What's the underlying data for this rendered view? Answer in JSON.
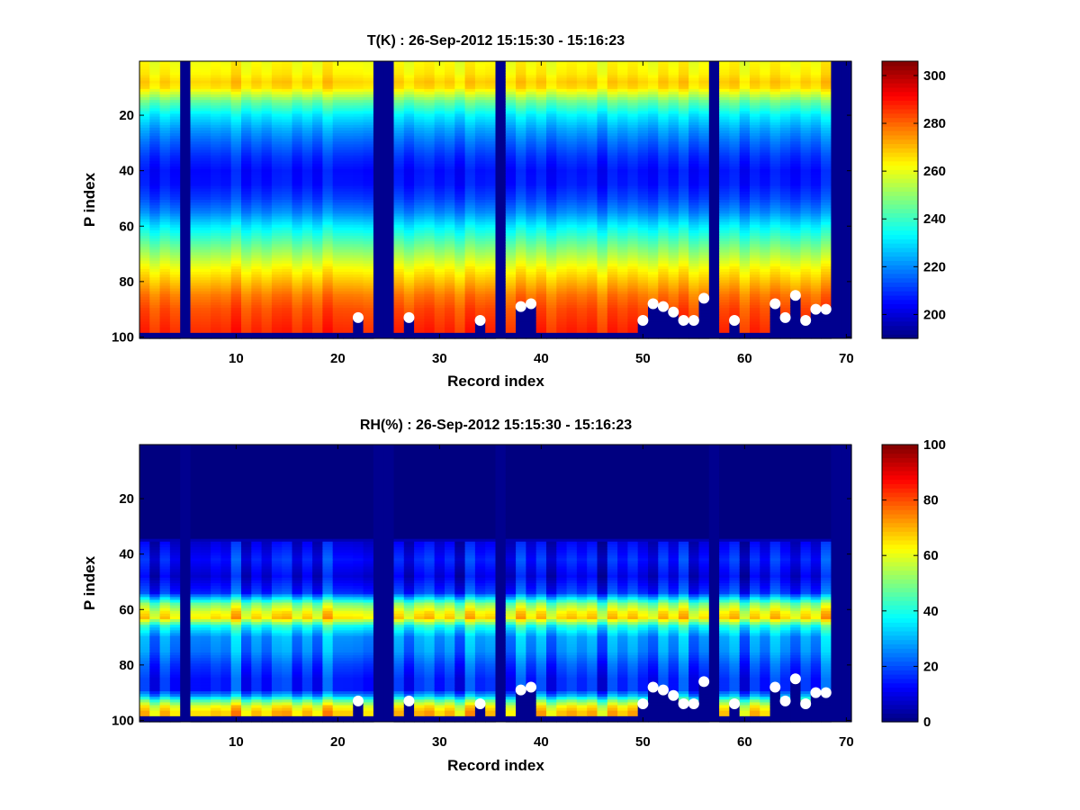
{
  "chart_data": [
    {
      "type": "heatmap",
      "title": "T(K) : 26-Sep-2012 15:15:30 - 15:16:23",
      "xlabel": "Record index",
      "ylabel": "P index",
      "xlim": [
        0.5,
        70.5
      ],
      "ylim": [
        0.5,
        100.5
      ],
      "y_reversed": true,
      "xticks": [
        10,
        20,
        30,
        40,
        50,
        60,
        70
      ],
      "yticks": [
        20,
        40,
        60,
        80,
        100
      ],
      "colorbar": {
        "ticks": [
          200,
          220,
          240,
          260,
          280,
          300
        ],
        "range": [
          190,
          306
        ]
      },
      "colormap": "jet",
      "columns": 70,
      "rows": 100,
      "missing_columns": [
        5,
        24,
        25,
        36,
        57,
        69,
        70
      ],
      "profile": [
        [
          1,
          262
        ],
        [
          5,
          264
        ],
        [
          8,
          268
        ],
        [
          10,
          266
        ],
        [
          12,
          258
        ],
        [
          15,
          246
        ],
        [
          20,
          232
        ],
        [
          25,
          223
        ],
        [
          30,
          216
        ],
        [
          35,
          210
        ],
        [
          40,
          206
        ],
        [
          45,
          207
        ],
        [
          50,
          212
        ],
        [
          55,
          220
        ],
        [
          60,
          232
        ],
        [
          65,
          242
        ],
        [
          70,
          252
        ],
        [
          75,
          262
        ],
        [
          80,
          270
        ],
        [
          85,
          278
        ],
        [
          90,
          283
        ],
        [
          97,
          287
        ]
      ],
      "markers": [
        {
          "x": 22,
          "y": 93
        },
        {
          "x": 27,
          "y": 93
        },
        {
          "x": 34,
          "y": 94
        },
        {
          "x": 38,
          "y": 89
        },
        {
          "x": 39,
          "y": 88
        },
        {
          "x": 50,
          "y": 94
        },
        {
          "x": 51,
          "y": 88
        },
        {
          "x": 52,
          "y": 89
        },
        {
          "x": 53,
          "y": 91
        },
        {
          "x": 54,
          "y": 94
        },
        {
          "x": 55,
          "y": 94
        },
        {
          "x": 56,
          "y": 86
        },
        {
          "x": 59,
          "y": 94
        },
        {
          "x": 63,
          "y": 88
        },
        {
          "x": 64,
          "y": 93
        },
        {
          "x": 65,
          "y": 85
        },
        {
          "x": 66,
          "y": 94
        },
        {
          "x": 67,
          "y": 90
        },
        {
          "x": 68,
          "y": 90
        }
      ]
    },
    {
      "type": "heatmap",
      "title": "RH(%) : 26-Sep-2012 15:15:30 - 15:16:23",
      "xlabel": "Record index",
      "ylabel": "P index",
      "xlim": [
        0.5,
        70.5
      ],
      "ylim": [
        0.5,
        100.5
      ],
      "y_reversed": true,
      "xticks": [
        10,
        20,
        30,
        40,
        50,
        60,
        70
      ],
      "yticks": [
        20,
        40,
        60,
        80,
        100
      ],
      "colorbar": {
        "ticks": [
          0,
          20,
          40,
          60,
          80,
          100
        ],
        "range": [
          0,
          100
        ]
      },
      "colormap": "jet",
      "columns": 70,
      "rows": 100,
      "missing_columns": [
        5,
        24,
        25,
        36,
        57,
        69,
        70
      ],
      "profile": [
        [
          1,
          0
        ],
        [
          34,
          0
        ],
        [
          36,
          10
        ],
        [
          42,
          15
        ],
        [
          48,
          10
        ],
        [
          54,
          18
        ],
        [
          58,
          50
        ],
        [
          61,
          62
        ],
        [
          63,
          66
        ],
        [
          66,
          40
        ],
        [
          70,
          28
        ],
        [
          75,
          26
        ],
        [
          80,
          20
        ],
        [
          85,
          16
        ],
        [
          89,
          16
        ],
        [
          91,
          28
        ],
        [
          93,
          48
        ],
        [
          95,
          62
        ],
        [
          97,
          68
        ]
      ],
      "markers": [
        {
          "x": 22,
          "y": 93
        },
        {
          "x": 27,
          "y": 93
        },
        {
          "x": 34,
          "y": 94
        },
        {
          "x": 38,
          "y": 89
        },
        {
          "x": 39,
          "y": 88
        },
        {
          "x": 50,
          "y": 94
        },
        {
          "x": 51,
          "y": 88
        },
        {
          "x": 52,
          "y": 89
        },
        {
          "x": 53,
          "y": 91
        },
        {
          "x": 54,
          "y": 94
        },
        {
          "x": 55,
          "y": 94
        },
        {
          "x": 56,
          "y": 86
        },
        {
          "x": 59,
          "y": 94
        },
        {
          "x": 63,
          "y": 88
        },
        {
          "x": 64,
          "y": 93
        },
        {
          "x": 65,
          "y": 85
        },
        {
          "x": 66,
          "y": 94
        },
        {
          "x": 67,
          "y": 90
        },
        {
          "x": 68,
          "y": 90
        }
      ]
    }
  ],
  "colors": {
    "missing": "#00008f",
    "marker": "#ffffff"
  }
}
